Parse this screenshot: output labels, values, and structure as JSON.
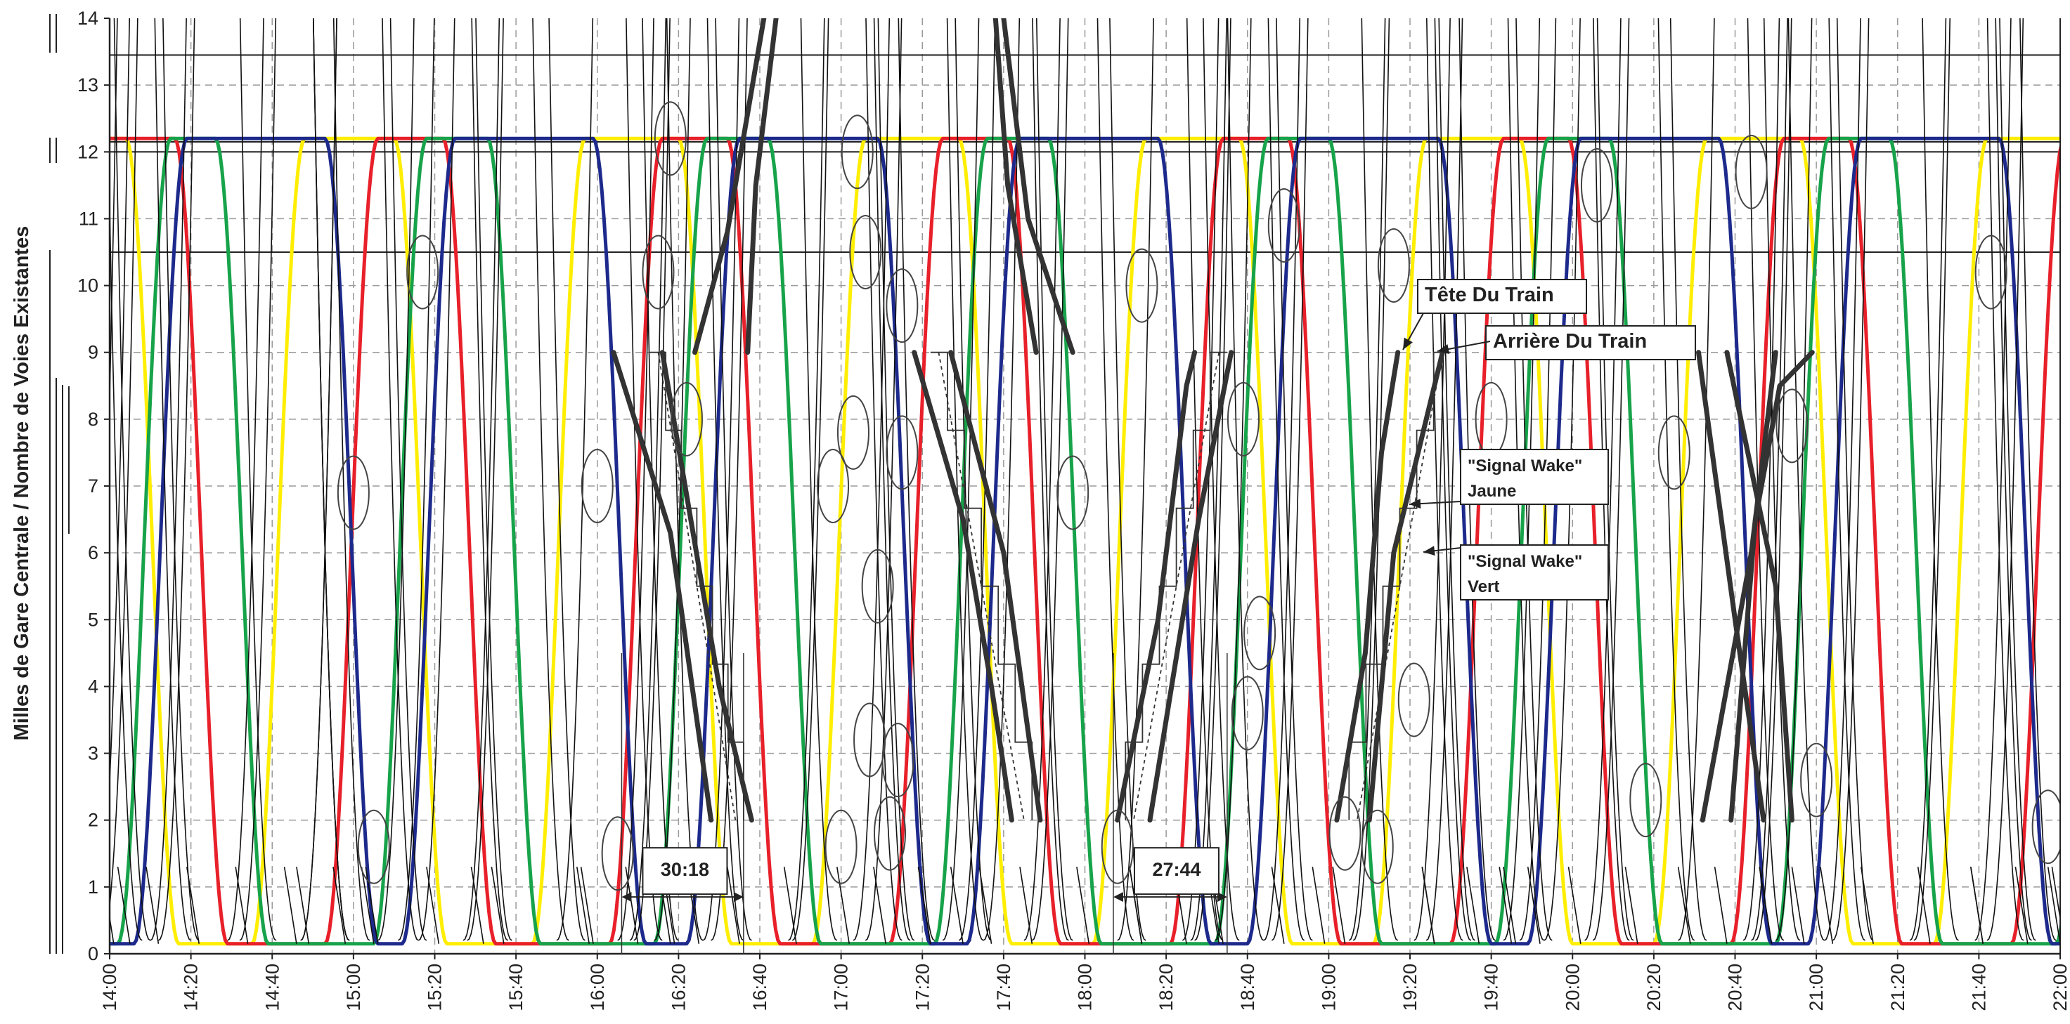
{
  "chart_data": {
    "type": "line",
    "title": "",
    "xlabel": "",
    "ylabel": "Milles de Gare Centrale / Nombre de Voies Existantes",
    "x_ticks": [
      "14:00",
      "14:20",
      "14:40",
      "15:00",
      "15:20",
      "15:40",
      "16:00",
      "16:20",
      "16:40",
      "17:00",
      "17:20",
      "17:40",
      "18:00",
      "18:20",
      "18:40",
      "19:00",
      "19:20",
      "19:40",
      "20:00",
      "20:20",
      "20:40",
      "21:00",
      "21:20",
      "21:40",
      "22:00"
    ],
    "y_ticks": [
      "0",
      "1",
      "2",
      "3",
      "4",
      "5",
      "6",
      "7",
      "8",
      "9",
      "10",
      "11",
      "12",
      "13",
      "14"
    ],
    "xlim": [
      "14:00",
      "22:00"
    ],
    "ylim": [
      0,
      14
    ],
    "grid": true,
    "reference_lines": [
      12.15,
      12.0,
      10.5,
      13.45
    ],
    "colors": {
      "red": "#e8202a",
      "yellow": "#ffee00",
      "green": "#17a34a",
      "blue": "#1d2a8c",
      "thin": "#111111",
      "thick": "#333333"
    },
    "series": [
      {
        "color": "yellow",
        "descents": [
          "14:04",
          "15:10",
          "16:20",
          "17:29",
          "18:38",
          "19:47",
          "20:56",
          "22:05"
        ],
        "ascents": [
          "14:35",
          "15:44",
          "16:53",
          "18:02",
          "19:11",
          "20:20",
          "21:29",
          "22:38"
        ]
      },
      {
        "color": "red",
        "descents": [
          "14:16",
          "15:22",
          "16:32",
          "17:41",
          "18:50",
          "19:59",
          "21:08"
        ],
        "ascents": [
          "13:47",
          "14:53",
          "16:03",
          "17:12",
          "18:21",
          "19:30",
          "20:39",
          "21:48"
        ]
      },
      {
        "color": "green",
        "descents": [
          "14:26",
          "15:33",
          "16:42",
          "17:51",
          "19:00",
          "20:09",
          "21:18"
        ],
        "ascents": [
          "14:02",
          "15:05",
          "16:14",
          "17:23",
          "18:32",
          "19:41",
          "20:50",
          "21:59"
        ]
      },
      {
        "color": "blue",
        "descents": [
          "14:53",
          "15:59",
          "17:09",
          "18:18",
          "19:27",
          "20:36",
          "21:45"
        ],
        "ascents": [
          "14:06",
          "15:12",
          "16:22",
          "17:31",
          "18:40",
          "19:49",
          "20:58",
          "22:07"
        ]
      }
    ],
    "thick_trains": [
      {
        "points": [
          [
            "16:04",
            9.0
          ],
          [
            "16:18",
            6.3
          ],
          [
            "16:28",
            2.0
          ]
        ]
      },
      {
        "points": [
          [
            "16:16",
            9.0
          ],
          [
            "16:30",
            4.0
          ],
          [
            "16:38",
            2.0
          ]
        ]
      },
      {
        "points": [
          [
            "16:24",
            9.0
          ],
          [
            "16:32",
            10.8
          ],
          [
            "16:41",
            14.0
          ]
        ]
      },
      {
        "points": [
          [
            "16:37",
            9.0
          ],
          [
            "16:39",
            11.5
          ],
          [
            "16:44",
            14.0
          ]
        ]
      },
      {
        "points": [
          [
            "17:18",
            9.0
          ],
          [
            "17:30",
            6.5
          ],
          [
            "17:37",
            4.0
          ],
          [
            "17:42",
            2.0
          ]
        ]
      },
      {
        "points": [
          [
            "17:27",
            9.0
          ],
          [
            "17:40",
            6.0
          ],
          [
            "17:49",
            2.0
          ]
        ]
      },
      {
        "points": [
          [
            "17:38",
            14.0
          ],
          [
            "17:41",
            11.5
          ],
          [
            "17:48",
            9.0
          ]
        ]
      },
      {
        "points": [
          [
            "17:40",
            14.0
          ],
          [
            "17:46",
            11.0
          ],
          [
            "17:57",
            9.0
          ]
        ]
      },
      {
        "points": [
          [
            "18:08",
            2.0
          ],
          [
            "18:18",
            5.0
          ],
          [
            "18:25",
            8.5
          ],
          [
            "18:27",
            9.0
          ]
        ]
      },
      {
        "points": [
          [
            "18:16",
            2.0
          ],
          [
            "18:28",
            6.5
          ],
          [
            "18:36",
            9.0
          ]
        ]
      },
      {
        "points": [
          [
            "19:02",
            2.0
          ],
          [
            "19:09",
            4.5
          ],
          [
            "19:13",
            7.5
          ],
          [
            "19:17",
            9.0
          ]
        ]
      },
      {
        "points": [
          [
            "19:10",
            2.0
          ],
          [
            "19:16",
            6.0
          ],
          [
            "19:28",
            9.0
          ]
        ]
      },
      {
        "points": [
          [
            "20:31",
            9.0
          ],
          [
            "20:40",
            5.0
          ],
          [
            "20:47",
            2.0
          ]
        ]
      },
      {
        "points": [
          [
            "20:38",
            9.0
          ],
          [
            "20:50",
            5.5
          ],
          [
            "20:54",
            2.0
          ]
        ]
      },
      {
        "points": [
          [
            "20:32",
            2.0
          ],
          [
            "20:44",
            6.0
          ],
          [
            "20:50",
            9.0
          ]
        ]
      },
      {
        "points": [
          [
            "20:39",
            2.0
          ],
          [
            "20:45",
            6.5
          ],
          [
            "20:51",
            8.5
          ],
          [
            "20:59",
            9.0
          ]
        ]
      }
    ],
    "ellipses": [
      [
        "15:05",
        1.6
      ],
      [
        "15:17",
        10.2
      ],
      [
        "15:00",
        6.9
      ],
      [
        "16:00",
        7.0
      ],
      [
        "16:05",
        1.5
      ],
      [
        "16:15",
        10.2
      ],
      [
        "16:18",
        12.2
      ],
      [
        "16:22",
        8.0
      ],
      [
        "16:58",
        7.0
      ],
      [
        "17:00",
        1.6
      ],
      [
        "17:03",
        7.8
      ],
      [
        "17:04",
        12.0
      ],
      [
        "17:06",
        10.5
      ],
      [
        "17:07",
        3.2
      ],
      [
        "17:09",
        5.5
      ],
      [
        "17:12",
        1.8
      ],
      [
        "17:14",
        2.9
      ],
      [
        "17:15",
        9.7
      ],
      [
        "17:15",
        7.5
      ],
      [
        "17:57",
        6.9
      ],
      [
        "18:14",
        10.0
      ],
      [
        "18:08",
        1.6
      ],
      [
        "18:39",
        8.0
      ],
      [
        "18:40",
        3.6
      ],
      [
        "18:43",
        4.8
      ],
      [
        "18:49",
        10.9
      ],
      [
        "19:04",
        1.8
      ],
      [
        "19:12",
        1.6
      ],
      [
        "19:16",
        10.3
      ],
      [
        "19:21",
        3.8
      ],
      [
        "19:40",
        8.0
      ],
      [
        "20:06",
        11.5
      ],
      [
        "20:18",
        2.3
      ],
      [
        "20:25",
        7.5
      ],
      [
        "20:44",
        11.7
      ],
      [
        "20:54",
        7.9
      ],
      [
        "21:00",
        2.6
      ],
      [
        "21:43",
        10.2
      ],
      [
        "21:57",
        1.9
      ]
    ],
    "intervals": [
      {
        "label": "30:18",
        "from": "16:06",
        "to": "16:36",
        "y": 0.85
      },
      {
        "label": "27:44",
        "from": "18:07",
        "to": "18:35",
        "y": 0.85
      }
    ],
    "annotations": {
      "tete": "Tête Du Train",
      "arriere": "Arrière Du Train",
      "signal_jaune_1": "\"Signal Wake\"",
      "signal_jaune_2": "Jaune",
      "signal_vert_1": "\"Signal Wake\"",
      "signal_vert_2": "Vert"
    }
  }
}
